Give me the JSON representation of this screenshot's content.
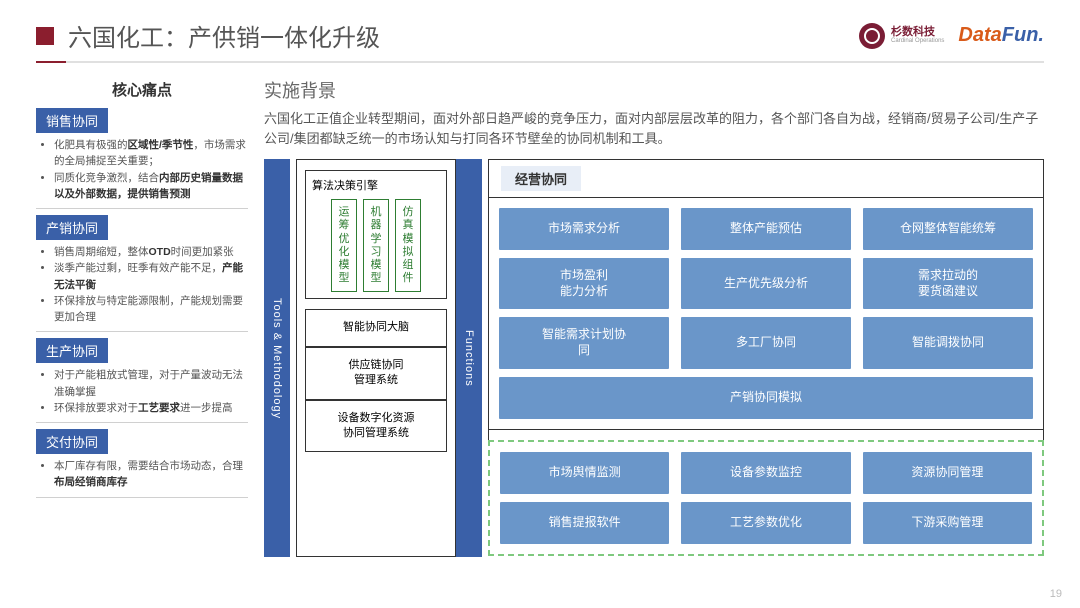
{
  "header": {
    "title": "六国化工：产供销一体化升级",
    "logo1_name": "杉数科技",
    "logo1_sub": "Cardinal Operations",
    "logo2_part1": "Data",
    "logo2_part2": "Fun."
  },
  "left": {
    "heading": "核心痛点",
    "sections": [
      {
        "tag": "销售协同",
        "items": [
          "化肥具有极强的<b>区域性/季节性</b>，市场需求的全局捕捉至关重要；",
          "同质化竞争激烈，结合<b>内部历史销量数据以及外部数据，提供销售预测</b>"
        ]
      },
      {
        "tag": "产销协同",
        "items": [
          "销售周期缩短，整体<b>OTD</b>时间更加紧张",
          "淡季产能过剩，旺季有效产能不足，<b>产能无法平衡</b>",
          "环保排放与特定能源限制，产能规划需要更加合理"
        ]
      },
      {
        "tag": "生产协同",
        "items": [
          "对于产能粗放式管理，对于产量波动无法准确掌握",
          "环保排放要求对于<b>工艺要求</b>进一步提高"
        ]
      },
      {
        "tag": "交付协同",
        "items": [
          "本厂库存有限，需要结合市场动态，合理<b>布局经销商库存</b>"
        ]
      }
    ]
  },
  "right": {
    "bg_title": "实施背景",
    "bg_text": "六国化工正值企业转型期间，面对外部日趋严峻的竞争压力，面对内部层层改革的阻力，各个部门各自为战，经销商/贸易子公司/生产子公司/集团都缺乏统一的市场认知与打同各环节壁垒的协同机制和工具。"
  },
  "diagram": {
    "vlabel_left": "Tools & Methodology",
    "vlabel_right": "Functions",
    "algo_engine_title": "算法决策引擎",
    "algo_models": [
      "运筹优化模型",
      "机器学习模型",
      "仿真模拟组件"
    ],
    "tool_boxes": [
      "智能协同大脑",
      "供应链协同\n管理系统",
      "设备数字化资源\n协同管理系统"
    ],
    "func_title": "经营协同",
    "group1_rows": [
      [
        "市场需求分析",
        "整体产能预估",
        "仓网整体智能统筹"
      ],
      [
        "市场盈利\n能力分析",
        "生产优先级分析",
        "需求拉动的\n要货函建议"
      ],
      [
        "智能需求计划协\n同",
        "多工厂协同",
        "智能调拨协同"
      ]
    ],
    "group1_single": "产销协同模拟",
    "group2_rows": [
      [
        "市场舆情监测",
        "设备参数监控",
        "资源协同管理"
      ],
      [
        "销售提报软件",
        "工艺参数优化",
        "下游采购管理"
      ]
    ]
  },
  "page_number": "19",
  "colors": {
    "brand_red": "#8b1e2e",
    "brand_blue": "#3a60a8",
    "card_blue": "#6a96c9",
    "model_green": "#2e7d32",
    "dash_green": "#7fc97f"
  }
}
